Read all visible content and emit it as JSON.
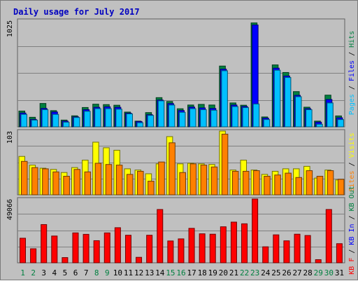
{
  "chart_data": {
    "type": "bar",
    "title": "Daily usage for July 2017",
    "days": [
      {
        "label": "1",
        "weekend": true
      },
      {
        "label": "2",
        "weekend": true
      },
      {
        "label": "3",
        "weekend": false
      },
      {
        "label": "4",
        "weekend": false
      },
      {
        "label": "5",
        "weekend": false
      },
      {
        "label": "6",
        "weekend": false
      },
      {
        "label": "7",
        "weekend": false
      },
      {
        "label": "8",
        "weekend": true
      },
      {
        "label": "9",
        "weekend": true
      },
      {
        "label": "10",
        "weekend": false
      },
      {
        "label": "11",
        "weekend": false
      },
      {
        "label": "12",
        "weekend": false
      },
      {
        "label": "13",
        "weekend": false
      },
      {
        "label": "14",
        "weekend": false
      },
      {
        "label": "15",
        "weekend": true
      },
      {
        "label": "16",
        "weekend": true
      },
      {
        "label": "17",
        "weekend": false
      },
      {
        "label": "18",
        "weekend": false
      },
      {
        "label": "19",
        "weekend": false
      },
      {
        "label": "20",
        "weekend": false
      },
      {
        "label": "21",
        "weekend": false
      },
      {
        "label": "22",
        "weekend": true
      },
      {
        "label": "23",
        "weekend": true
      },
      {
        "label": "24",
        "weekend": false
      },
      {
        "label": "25",
        "weekend": false
      },
      {
        "label": "26",
        "weekend": false
      },
      {
        "label": "27",
        "weekend": false
      },
      {
        "label": "28",
        "weekend": false
      },
      {
        "label": "29",
        "weekend": true
      },
      {
        "label": "30",
        "weekend": true
      },
      {
        "label": "31",
        "weekend": false
      }
    ],
    "panels": [
      {
        "key": "hits_files_pages",
        "ymax": 1025,
        "ymax_label": "1025",
        "legend": [
          {
            "text": "Pages",
            "color": "#00c0ff"
          },
          {
            "text": " / ",
            "color": "#000000"
          },
          {
            "text": "Files",
            "color": "#0000ff"
          },
          {
            "text": " / ",
            "color": "#000000"
          },
          {
            "text": "Hits",
            "color": "#008040"
          }
        ],
        "series": [
          {
            "name": "Hits",
            "color": "#008040",
            "values": [
              152,
              92,
              225,
              156,
              65,
              106,
              186,
              218,
              214,
              208,
              142,
              55,
              137,
              281,
              244,
              174,
              210,
              216,
              210,
              585,
              230,
              208,
              1000,
              95,
              596,
              523,
              339,
              189,
              55,
              305,
              105
            ]
          },
          {
            "name": "Files",
            "color": "#0000ff",
            "values": [
              133,
              72,
              177,
              143,
              55,
              96,
              165,
              188,
              193,
              188,
              132,
              51,
              117,
              258,
              224,
              157,
              190,
              182,
              177,
              555,
              210,
              196,
              980,
              84,
              565,
              489,
              303,
              175,
              45,
              263,
              87
            ]
          },
          {
            "name": "Pages",
            "color": "#00c0ff",
            "values": [
              120,
              65,
              165,
              120,
              45,
              90,
              150,
              175,
              175,
              170,
              125,
              40,
              110,
              250,
              210,
              140,
              175,
              165,
              160,
              540,
              195,
              185,
              220,
              70,
              545,
              475,
              290,
              165,
              25,
              230,
              70
            ]
          }
        ]
      },
      {
        "key": "visits_sites",
        "ymax": 103,
        "ymax_label": "103",
        "legend": [
          {
            "text": "Sites",
            "color": "#ff8000"
          },
          {
            "text": " / ",
            "color": "#000000"
          },
          {
            "text": "Visits",
            "color": "#ffff00"
          }
        ],
        "series": [
          {
            "name": "Visits",
            "color": "#ffff00",
            "values": [
              62,
              48,
              43,
              41,
              36,
              44,
              56,
              85,
              76,
              72,
              42,
              40,
              34,
              50,
              94,
              50,
              51,
              50,
              49,
              103,
              40,
              56,
              40,
              33,
              38,
              42,
              42,
              46,
              27,
              40,
              24
            ]
          },
          {
            "name": "Sites",
            "color": "#ff8000",
            "values": [
              54,
              44,
              42,
              37,
              30,
              41,
              37,
              51,
              49,
              48,
              33,
              38,
              22,
              53,
              84,
              36,
              50,
              48,
              45,
              98,
              38,
              38,
              39,
              30,
              32,
              35,
              28,
              39,
              30,
              39,
              25
            ]
          }
        ]
      },
      {
        "key": "kbytes",
        "ymax": 49066,
        "ymax_label": "49066",
        "legend": [
          {
            "text": "KB F",
            "color": "#ff0000"
          },
          {
            "text": " / ",
            "color": "#000000"
          },
          {
            "text": "KB In",
            "color": "#0000ff"
          },
          {
            "text": " / ",
            "color": "#000000"
          },
          {
            "text": "KB Out",
            "color": "#008040"
          }
        ],
        "series": [
          {
            "name": "KB F",
            "color": "#ff0000",
            "values": [
              18900,
              10800,
              29400,
              20600,
              4000,
              23000,
              21900,
              17000,
              23000,
              27000,
              21200,
              4200,
              21200,
              41000,
              16800,
              18400,
              26500,
              22300,
              22000,
              27700,
              31300,
              30000,
              49066,
              12300,
              21500,
              16900,
              22000,
              21000,
              2400,
              41000,
              14700
            ]
          }
        ]
      }
    ]
  }
}
